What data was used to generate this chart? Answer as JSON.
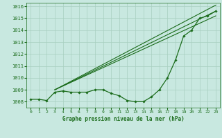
{
  "title": "Graphe pression niveau de la mer (hPa)",
  "bg_color": "#c8e8e0",
  "grid_color": "#a8cfc0",
  "line_color": "#1a6b1a",
  "xlim": [
    -0.5,
    23.5
  ],
  "ylim": [
    1007.5,
    1016.3
  ],
  "yticks": [
    1008,
    1009,
    1010,
    1011,
    1012,
    1013,
    1014,
    1015,
    1016
  ],
  "xticks": [
    0,
    1,
    2,
    3,
    4,
    5,
    6,
    7,
    8,
    9,
    10,
    11,
    12,
    13,
    14,
    15,
    16,
    17,
    18,
    19,
    20,
    21,
    22,
    23
  ],
  "curve_main": {
    "x": [
      0,
      1,
      2,
      3,
      4,
      5,
      6,
      7,
      8,
      9,
      10,
      11,
      12,
      13,
      14,
      15,
      16,
      17,
      18,
      19,
      20,
      21,
      22,
      23
    ],
    "y": [
      1008.2,
      1008.2,
      1008.1,
      1008.8,
      1008.9,
      1008.8,
      1008.8,
      1008.8,
      1009.0,
      1009.0,
      1008.7,
      1008.5,
      1008.1,
      1008.0,
      1008.0,
      1008.4,
      1009.0,
      1010.0,
      1011.5,
      1013.5,
      1014.0,
      1015.0,
      1015.2,
      1015.6
    ]
  },
  "line1": {
    "x": [
      3,
      23
    ],
    "y": [
      1009.0,
      1015.6
    ]
  },
  "line2": {
    "x": [
      3,
      23
    ],
    "y": [
      1009.0,
      1015.2
    ]
  },
  "line3": {
    "x": [
      3,
      23
    ],
    "y": [
      1009.0,
      1016.1
    ]
  }
}
